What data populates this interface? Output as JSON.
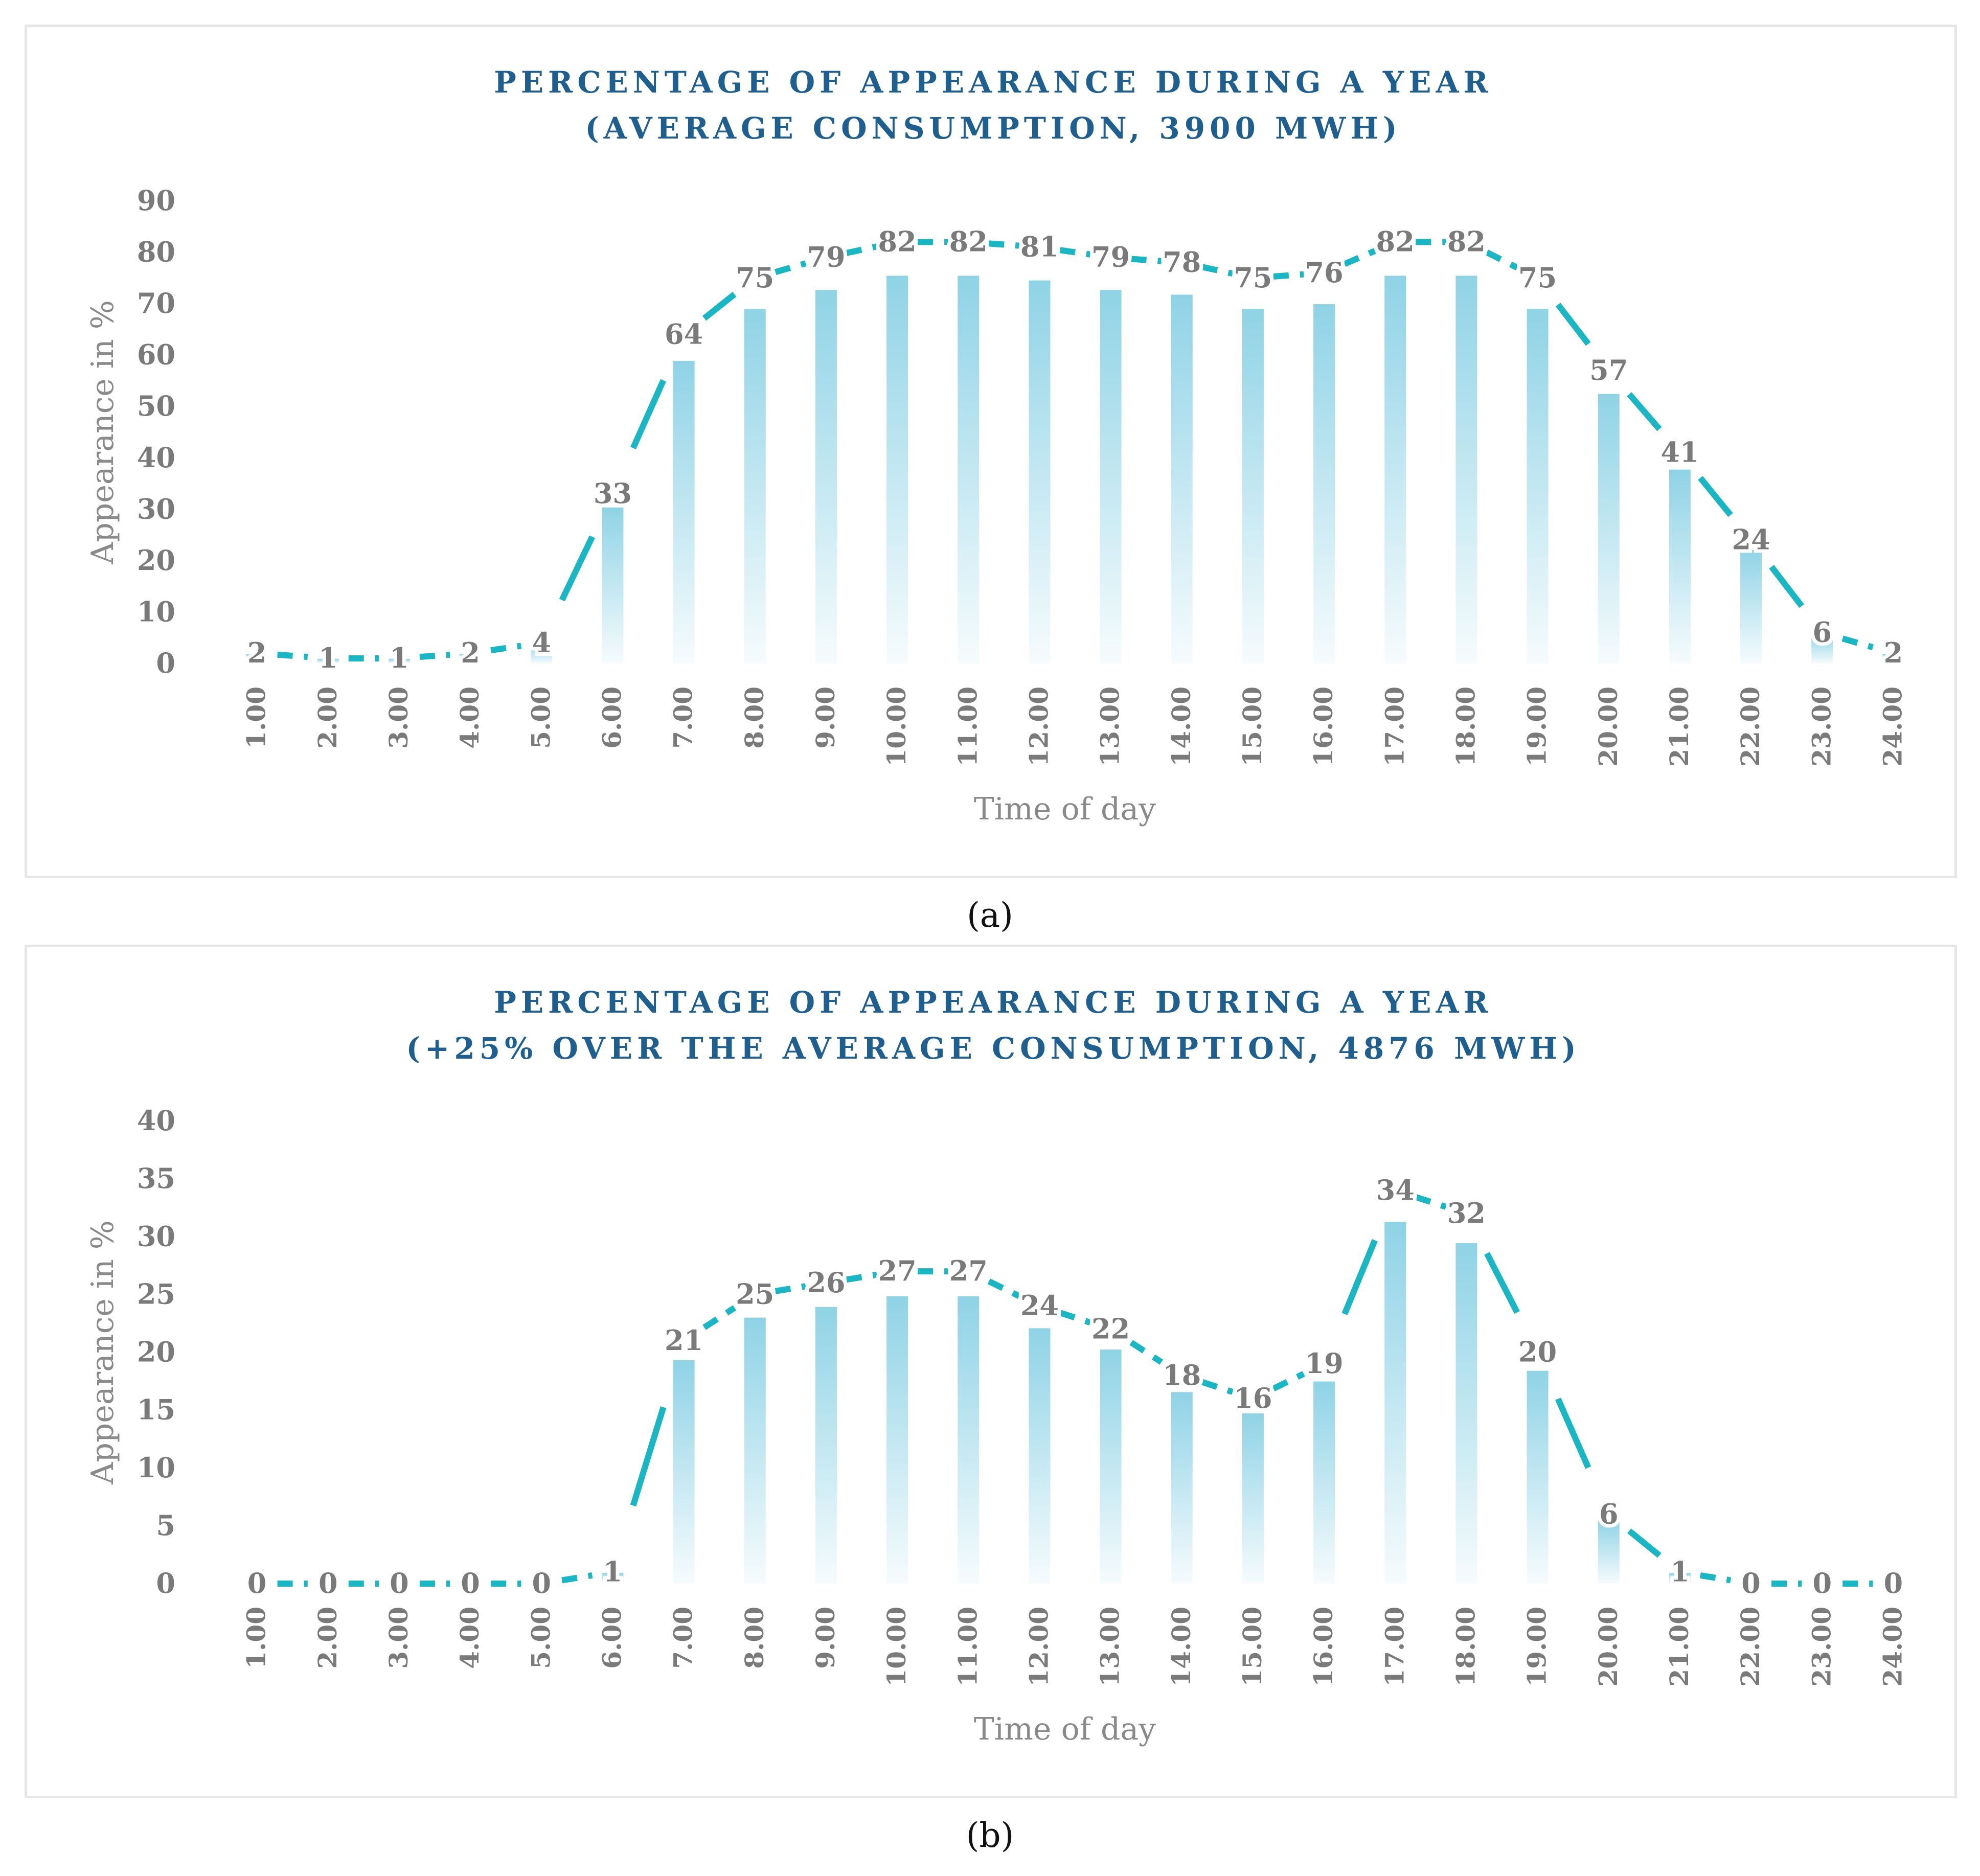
{
  "panels": [
    {
      "caption": "(a)",
      "chart_data": {
        "type": "bar",
        "title": "PERCENTAGE OF APPEARANCE DURING A YEAR",
        "subtitle": "(AVERAGE CONSUMPTION, 3900 MWH)",
        "xlabel": "Time of day",
        "ylabel": "Appearance in %",
        "ylim": [
          0,
          90
        ],
        "yticks": [
          0,
          10,
          20,
          30,
          40,
          50,
          60,
          70,
          80,
          90
        ],
        "categories": [
          "1.00",
          "2.00",
          "3.00",
          "4.00",
          "5.00",
          "6.00",
          "7.00",
          "8.00",
          "9.00",
          "10.00",
          "11.00",
          "12.00",
          "13.00",
          "14.00",
          "15.00",
          "16.00",
          "17.00",
          "18.00",
          "19.00",
          "20.00",
          "21.00",
          "22.00",
          "23.00",
          "24.00"
        ],
        "values": [
          2,
          1,
          1,
          2,
          4,
          33,
          64,
          75,
          79,
          82,
          82,
          81,
          79,
          78,
          75,
          76,
          82,
          82,
          75,
          57,
          41,
          24,
          6,
          2
        ],
        "grid": false,
        "legend": "none",
        "bar_color": "#8fd3e6",
        "line_color": "#1ab6c3"
      }
    },
    {
      "caption": "(b)",
      "chart_data": {
        "type": "bar",
        "title": "PERCENTAGE OF APPEARANCE DURING A YEAR",
        "subtitle": "(+25% OVER THE AVERAGE CONSUMPTION, 4876 MWH)",
        "xlabel": "Time of day",
        "ylabel": "Appearance in %",
        "ylim": [
          0,
          40
        ],
        "yticks": [
          0,
          5,
          10,
          15,
          20,
          25,
          30,
          35,
          40
        ],
        "categories": [
          "1.00",
          "2.00",
          "3.00",
          "4.00",
          "5.00",
          "6.00",
          "7.00",
          "8.00",
          "9.00",
          "10.00",
          "11.00",
          "12.00",
          "13.00",
          "14.00",
          "15.00",
          "16.00",
          "17.00",
          "18.00",
          "19.00",
          "20.00",
          "21.00",
          "22.00",
          "23.00",
          "24.00"
        ],
        "values": [
          0,
          0,
          0,
          0,
          0,
          1,
          21,
          25,
          26,
          27,
          27,
          24,
          22,
          18,
          16,
          19,
          34,
          32,
          20,
          6,
          1,
          0,
          0,
          0
        ],
        "grid": false,
        "legend": "none",
        "bar_color": "#8fd3e6",
        "line_color": "#1ab6c3"
      }
    }
  ]
}
